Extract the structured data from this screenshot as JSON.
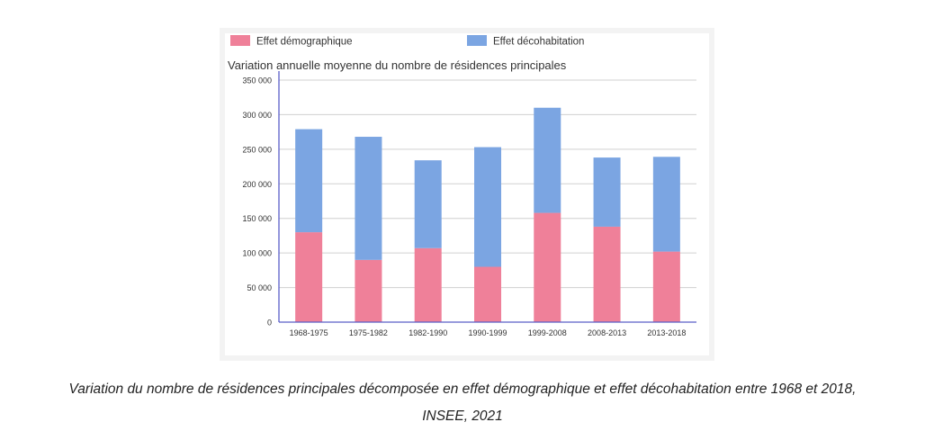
{
  "chart_data": {
    "type": "bar",
    "stacked": true,
    "title": "Variation annuelle moyenne du nombre de résidences principales",
    "categories": [
      "1968-1975",
      "1975-1982",
      "1982-1990",
      "1990-1999",
      "1999-2008",
      "2008-2013",
      "2013-2018"
    ],
    "series": [
      {
        "name": "Effet démographique",
        "color": "#ef8099",
        "values": [
          130000,
          90000,
          107000,
          80000,
          158000,
          138000,
          102000
        ]
      },
      {
        "name": "Effet décohabitation",
        "color": "#7ba5e2",
        "values": [
          149000,
          178000,
          127000,
          173000,
          152000,
          100000,
          137000
        ]
      }
    ],
    "yticks": [
      0,
      50000,
      100000,
      150000,
      200000,
      250000,
      300000,
      350000
    ],
    "ytick_labels": [
      "0",
      "50 000",
      "100 000",
      "150 000",
      "200 000",
      "250 000",
      "300 000",
      "350 000"
    ],
    "ylim": [
      0,
      350000
    ],
    "grid": true,
    "legend_position": "top-left"
  },
  "caption": {
    "line1": "Variation du nombre de résidences principales décomposée en effet démographique et effet décohabitation entre 1968 et 2018,",
    "line2": "INSEE, 2021"
  }
}
